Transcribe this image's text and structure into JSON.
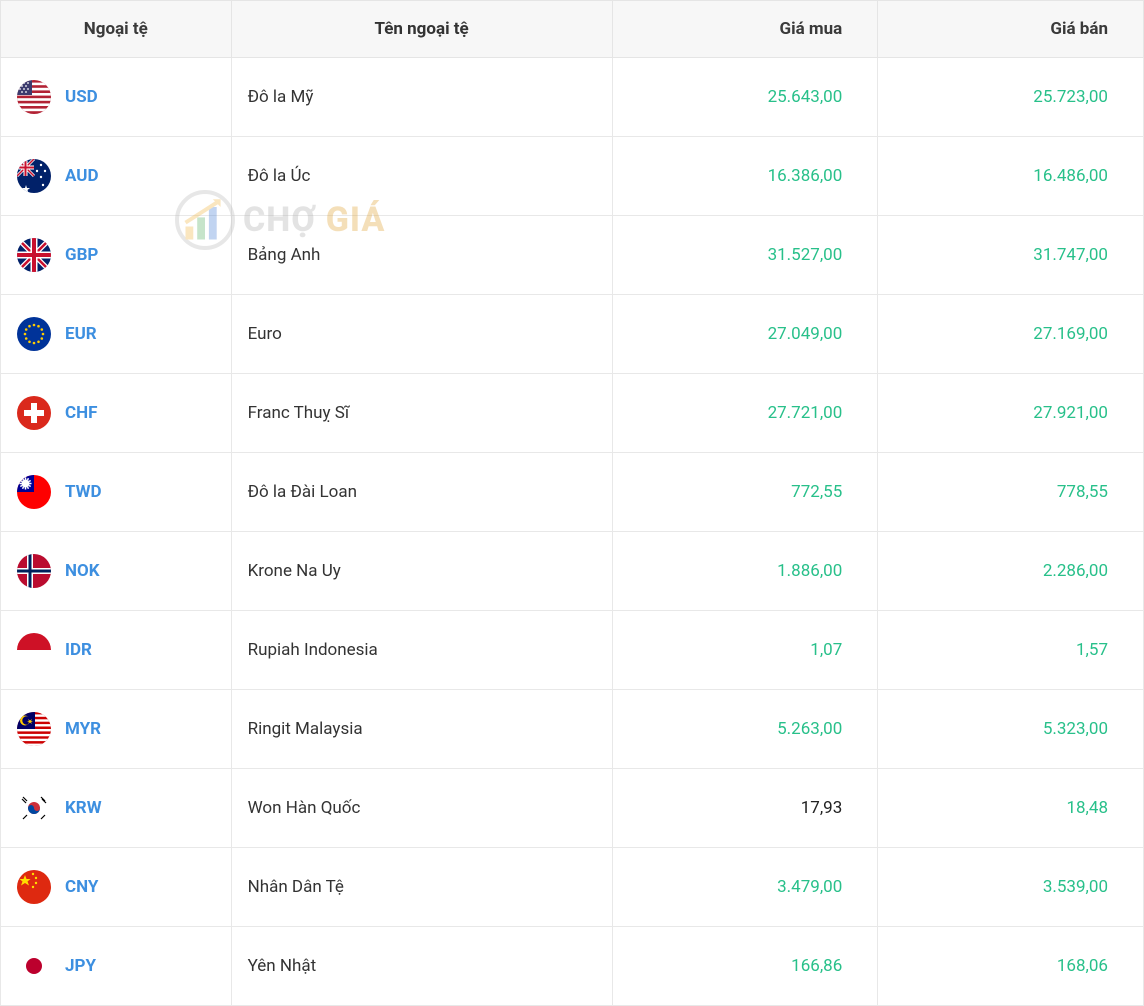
{
  "table": {
    "columns": [
      "Ngoại tệ",
      "Tên ngoại tệ",
      "Giá mua",
      "Giá bán"
    ],
    "price_up_color": "#28c08a",
    "price_neutral_color": "#222222",
    "code_link_color": "#3d8fe0",
    "header_bg": "#f7f7f7",
    "border_color": "#e8e8e8",
    "rows": [
      {
        "code": "USD",
        "name": "Đô la Mỹ",
        "buy": "25.643,00",
        "sell": "25.723,00",
        "buy_up": true,
        "sell_up": true,
        "flag": "us"
      },
      {
        "code": "AUD",
        "name": "Đô la Úc",
        "buy": "16.386,00",
        "sell": "16.486,00",
        "buy_up": true,
        "sell_up": true,
        "flag": "au"
      },
      {
        "code": "GBP",
        "name": "Bảng Anh",
        "buy": "31.527,00",
        "sell": "31.747,00",
        "buy_up": true,
        "sell_up": true,
        "flag": "gb"
      },
      {
        "code": "EUR",
        "name": "Euro",
        "buy": "27.049,00",
        "sell": "27.169,00",
        "buy_up": true,
        "sell_up": true,
        "flag": "eu"
      },
      {
        "code": "CHF",
        "name": "Franc Thuỵ Sĩ",
        "buy": "27.721,00",
        "sell": "27.921,00",
        "buy_up": true,
        "sell_up": true,
        "flag": "ch"
      },
      {
        "code": "TWD",
        "name": "Đô la Đài Loan",
        "buy": "772,55",
        "sell": "778,55",
        "buy_up": true,
        "sell_up": true,
        "flag": "tw"
      },
      {
        "code": "NOK",
        "name": "Krone Na Uy",
        "buy": "1.886,00",
        "sell": "2.286,00",
        "buy_up": true,
        "sell_up": true,
        "flag": "no"
      },
      {
        "code": "IDR",
        "name": "Rupiah Indonesia",
        "buy": "1,07",
        "sell": "1,57",
        "buy_up": true,
        "sell_up": true,
        "flag": "id"
      },
      {
        "code": "MYR",
        "name": "Ringit Malaysia",
        "buy": "5.263,00",
        "sell": "5.323,00",
        "buy_up": true,
        "sell_up": true,
        "flag": "my"
      },
      {
        "code": "KRW",
        "name": "Won Hàn Quốc",
        "buy": "17,93",
        "sell": "18,48",
        "buy_up": false,
        "sell_up": true,
        "flag": "kr"
      },
      {
        "code": "CNY",
        "name": "Nhân Dân Tệ",
        "buy": "3.479,00",
        "sell": "3.539,00",
        "buy_up": true,
        "sell_up": true,
        "flag": "cn"
      },
      {
        "code": "JPY",
        "name": "Yên Nhật",
        "buy": "166,86",
        "sell": "168,06",
        "buy_up": true,
        "sell_up": true,
        "flag": "jp"
      }
    ]
  },
  "watermark": {
    "text1": "CHỢ",
    "text2": "GIÁ"
  }
}
